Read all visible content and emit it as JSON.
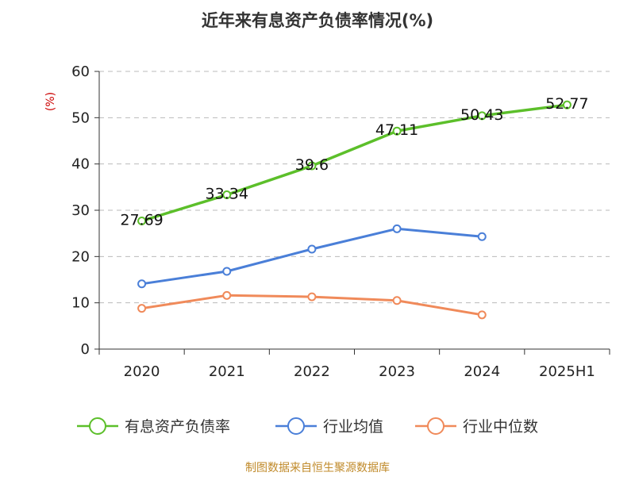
{
  "chart_data": {
    "type": "line",
    "title": "近年来有息资产负债率情况(%)",
    "ylabel": "(%)",
    "ylim": [
      0,
      60
    ],
    "yticks": [
      0,
      10,
      20,
      30,
      40,
      50,
      60
    ],
    "grid": "horizontal-dashed",
    "legend_position": "bottom",
    "categories": [
      "2020",
      "2021",
      "2022",
      "2023",
      "2024",
      "2025H1"
    ],
    "series": [
      {
        "name": "有息资产负债率",
        "color": "#5cbf2a",
        "values": [
          27.69,
          33.34,
          39.6,
          47.11,
          50.43,
          52.77
        ],
        "labels": [
          "27.69",
          "33.34",
          "39.6",
          "47.11",
          "50.43",
          "52.77"
        ]
      },
      {
        "name": "行业均值",
        "color": "#4a7fd8",
        "values": [
          14.1,
          16.8,
          21.6,
          26.0,
          24.3,
          null
        ]
      },
      {
        "name": "行业中位数",
        "color": "#f08a5a",
        "values": [
          8.8,
          11.6,
          11.3,
          10.5,
          7.4,
          null
        ]
      }
    ]
  },
  "source": "制图数据来自恒生聚源数据库"
}
